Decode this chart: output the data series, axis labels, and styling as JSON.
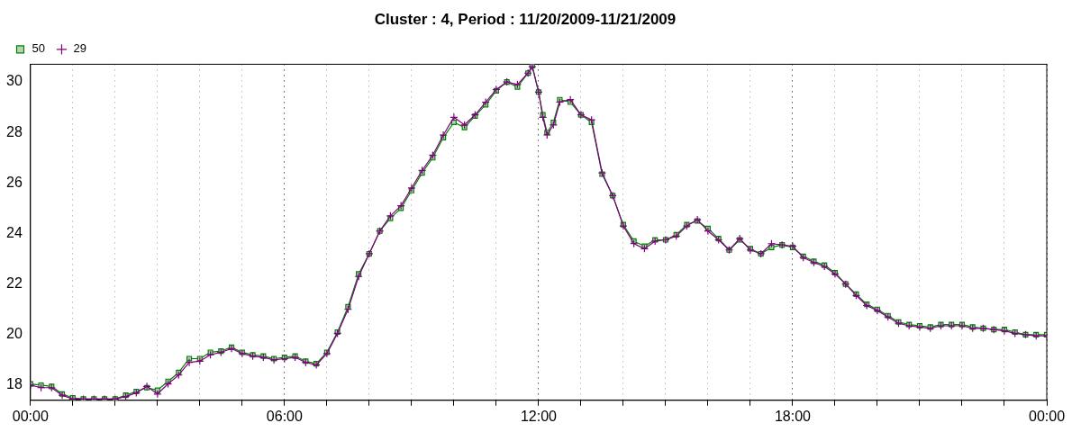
{
  "chart_data": {
    "type": "line",
    "title": "Cluster : 4, Period : 11/20/2009-11/21/2009",
    "x": [
      0,
      0.25,
      0.5,
      0.75,
      1,
      1.25,
      1.5,
      1.75,
      2,
      2.25,
      2.5,
      2.75,
      3,
      3.25,
      3.5,
      3.75,
      4,
      4.25,
      4.5,
      4.75,
      5,
      5.25,
      5.5,
      5.75,
      6,
      6.25,
      6.5,
      6.75,
      7,
      7.25,
      7.5,
      7.75,
      8,
      8.25,
      8.5,
      8.75,
      9,
      9.25,
      9.5,
      9.75,
      10,
      10.25,
      10.5,
      10.75,
      11,
      11.25,
      11.5,
      11.75,
      11.85,
      12,
      12.1,
      12.2,
      12.35,
      12.5,
      12.75,
      13,
      13.25,
      13.5,
      13.75,
      14,
      14.25,
      14.5,
      14.75,
      15,
      15.25,
      15.5,
      15.75,
      16,
      16.25,
      16.5,
      16.75,
      17,
      17.25,
      17.5,
      17.75,
      18,
      18.25,
      18.5,
      18.75,
      19,
      19.25,
      19.5,
      19.75,
      20,
      20.25,
      20.5,
      20.75,
      21,
      21.25,
      21.5,
      21.75,
      22,
      22.25,
      22.5,
      22.75,
      23,
      23.25,
      23.5,
      23.75,
      24
    ],
    "series": [
      {
        "name": "50",
        "color": "#008000",
        "marker": "square",
        "values": [
          18.05,
          18,
          17.95,
          17.65,
          17.5,
          17.45,
          17.45,
          17.45,
          17.45,
          17.6,
          17.75,
          17.9,
          17.8,
          18.15,
          18.5,
          19.05,
          19.05,
          19.3,
          19.35,
          19.5,
          19.3,
          19.2,
          19.15,
          19.05,
          19.1,
          19.15,
          18.95,
          18.85,
          19.3,
          20.1,
          21.1,
          22.4,
          23.2,
          24.1,
          24.6,
          25,
          25.7,
          26.4,
          27,
          27.8,
          28.4,
          28.2,
          28.65,
          29.1,
          29.65,
          30,
          29.8,
          30.35,
          30.65,
          29.6,
          28.7,
          28,
          28.4,
          29.3,
          29.2,
          28.7,
          28.4,
          26.35,
          25.5,
          24.35,
          23.7,
          23.5,
          23.75,
          23.75,
          23.95,
          24.35,
          24.5,
          24.2,
          23.8,
          23.35,
          23.75,
          23.4,
          23.2,
          23.45,
          23.55,
          23.45,
          23.1,
          22.9,
          22.75,
          22.45,
          22,
          21.6,
          21.2,
          21,
          20.75,
          20.5,
          20.4,
          20.35,
          20.3,
          20.4,
          20.4,
          20.4,
          20.3,
          20.25,
          20.2,
          20.2,
          20.1,
          20,
          20,
          20
        ]
      },
      {
        "name": "29",
        "color": "#800080",
        "marker": "cross",
        "values": [
          18,
          17.9,
          17.9,
          17.6,
          17.45,
          17.45,
          17.45,
          17.45,
          17.45,
          17.55,
          17.7,
          17.95,
          17.65,
          18.05,
          18.4,
          18.9,
          18.95,
          19.2,
          19.3,
          19.45,
          19.25,
          19.15,
          19.1,
          19,
          19.05,
          19.1,
          18.9,
          18.8,
          19.25,
          20.05,
          21,
          22.3,
          23.2,
          24.1,
          24.7,
          25.1,
          25.8,
          26.5,
          27.1,
          27.9,
          28.6,
          28.3,
          28.7,
          29.2,
          29.7,
          30,
          29.9,
          30.35,
          30.6,
          29.6,
          28.6,
          27.9,
          28.3,
          29.2,
          29.3,
          28.7,
          28.5,
          26.4,
          25.5,
          24.3,
          23.6,
          23.4,
          23.7,
          23.75,
          23.9,
          24.3,
          24.55,
          24.1,
          23.75,
          23.35,
          23.8,
          23.35,
          23.2,
          23.6,
          23.55,
          23.5,
          23.05,
          22.85,
          22.7,
          22.4,
          22,
          21.55,
          21.15,
          20.95,
          20.7,
          20.45,
          20.35,
          20.3,
          20.25,
          20.35,
          20.35,
          20.35,
          20.25,
          20.25,
          20.2,
          20.15,
          20.05,
          20,
          19.95,
          19.95
        ]
      }
    ],
    "xlim": [
      0,
      24
    ],
    "xticks": [
      {
        "value": 0,
        "label": "00:00"
      },
      {
        "value": 1,
        "label": null
      },
      {
        "value": 2,
        "label": null
      },
      {
        "value": 3,
        "label": null
      },
      {
        "value": 4,
        "label": null
      },
      {
        "value": 5,
        "label": null
      },
      {
        "value": 6,
        "label": "06:00"
      },
      {
        "value": 7,
        "label": null
      },
      {
        "value": 8,
        "label": null
      },
      {
        "value": 9,
        "label": null
      },
      {
        "value": 10,
        "label": null
      },
      {
        "value": 11,
        "label": null
      },
      {
        "value": 12,
        "label": "12:00"
      },
      {
        "value": 13,
        "label": null
      },
      {
        "value": 14,
        "label": null
      },
      {
        "value": 15,
        "label": null
      },
      {
        "value": 16,
        "label": null
      },
      {
        "value": 17,
        "label": null
      },
      {
        "value": 18,
        "label": "18:00"
      },
      {
        "value": 19,
        "label": null
      },
      {
        "value": 20,
        "label": null
      },
      {
        "value": 21,
        "label": null
      },
      {
        "value": 22,
        "label": null
      },
      {
        "value": 23,
        "label": null
      },
      {
        "value": 24,
        "label": "00:00"
      }
    ],
    "ylim": [
      17.4,
      30.7
    ],
    "yticks": [
      18,
      20,
      22,
      24,
      26,
      28,
      30
    ],
    "grid": "x",
    "legend": "top left",
    "line_style": "solid"
  }
}
